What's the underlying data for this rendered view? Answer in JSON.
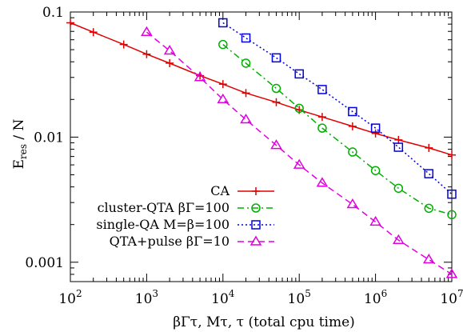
{
  "chart_data": {
    "type": "line",
    "xscale": "log",
    "yscale": "log",
    "xlim": [
      100,
      10000000
    ],
    "ylim": [
      0.0007,
      0.1
    ],
    "xlabel": "βΓτ,  Mτ, τ (total cpu time)",
    "ylabel_main": "E",
    "ylabel_sub": "res",
    "ylabel_rest": " / N",
    "x_ticks": [
      {
        "value": 100,
        "base": "10",
        "exp": "2"
      },
      {
        "value": 1000,
        "base": "10",
        "exp": "3"
      },
      {
        "value": 10000,
        "base": "10",
        "exp": "4"
      },
      {
        "value": 100000,
        "base": "10",
        "exp": "5"
      },
      {
        "value": 1000000,
        "base": "10",
        "exp": "6"
      },
      {
        "value": 10000000,
        "base": "10",
        "exp": "7"
      }
    ],
    "y_ticks": [
      {
        "value": 0.1,
        "label": "0.1"
      },
      {
        "value": 0.01,
        "label": "0.01"
      },
      {
        "value": 0.001,
        "label": "0.001"
      }
    ],
    "legend_position": "bottom-left",
    "series": [
      {
        "name": "CA",
        "color": "#e00000",
        "dash": "solid",
        "marker": "plus",
        "x": [
          100,
          200,
          500,
          1000,
          2000,
          5000,
          10000,
          20000,
          50000,
          100000,
          200000,
          500000,
          1000000,
          2000000,
          5000000,
          10000000
        ],
        "y": [
          0.082,
          0.069,
          0.055,
          0.046,
          0.039,
          0.031,
          0.0265,
          0.0225,
          0.019,
          0.0165,
          0.0145,
          0.0122,
          0.0107,
          0.0095,
          0.0082,
          0.0072
        ]
      },
      {
        "name": "cluster-QTA βΓ=100",
        "color": "#00b000",
        "dash": "dashdot",
        "marker": "circle",
        "x": [
          10000,
          20000,
          50000,
          100000,
          200000,
          500000,
          1000000,
          2000000,
          5000000,
          10000000
        ],
        "y": [
          0.055,
          0.039,
          0.0245,
          0.017,
          0.0118,
          0.0076,
          0.0054,
          0.0039,
          0.0027,
          0.0024
        ]
      },
      {
        "name": "single-QA M=β=100",
        "color": "#0000e0",
        "dash": "dotted",
        "marker": "square",
        "x": [
          10000,
          20000,
          50000,
          100000,
          200000,
          500000,
          1000000,
          2000000,
          5000000,
          10000000
        ],
        "y": [
          0.082,
          0.062,
          0.043,
          0.032,
          0.024,
          0.016,
          0.0118,
          0.0083,
          0.0051,
          0.0035
        ]
      },
      {
        "name": "QTA+pulse βΓ=10",
        "color": "#e000e0",
        "dash": "dashed",
        "marker": "triangle",
        "x": [
          1000,
          2000,
          5000,
          10000,
          20000,
          50000,
          100000,
          200000,
          500000,
          1000000,
          2000000,
          5000000,
          10000000
        ],
        "y": [
          0.069,
          0.049,
          0.03,
          0.02,
          0.0138,
          0.0086,
          0.006,
          0.0043,
          0.0029,
          0.0021,
          0.0015,
          0.00105,
          0.0008
        ]
      }
    ]
  }
}
